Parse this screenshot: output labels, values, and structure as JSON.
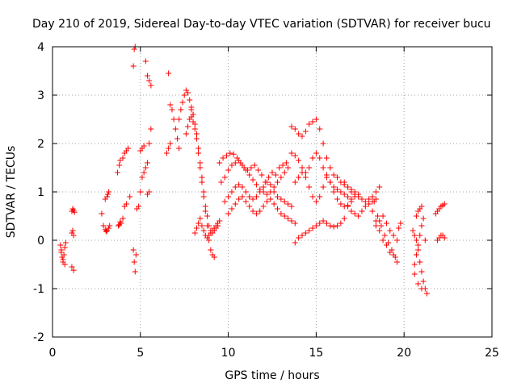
{
  "chart_data": {
    "type": "scatter",
    "title": "Day 210 of 2019, Sidereal Day-to-day VTEC variation (SDTVAR) for receiver bucu",
    "xlabel": "GPS time / hours",
    "ylabel": "SDTVAR / TECUs",
    "xlim": [
      0,
      25
    ],
    "ylim": [
      -2,
      4
    ],
    "x_ticks": [
      "0",
      "5",
      "10",
      "15",
      "20",
      "25"
    ],
    "y_ticks": [
      "-2",
      "-1",
      "0",
      "1",
      "2",
      "3",
      "4"
    ],
    "grid": true,
    "marker": "+",
    "color": "#ff0000",
    "series": [
      {
        "name": "SDTVAR",
        "x": [
          0.45,
          0.5,
          0.55,
          0.6,
          0.65,
          0.7,
          0.75,
          0.5,
          0.6,
          0.7,
          1.1,
          1.15,
          1.2,
          1.25,
          1.1,
          1.15,
          1.2,
          1.1,
          1.2,
          2.8,
          2.9,
          3.0,
          3.05,
          3.1,
          3.15,
          3.2,
          3.0,
          3.1,
          3.2,
          3.25,
          3.7,
          3.8,
          3.85,
          3.9,
          4.0,
          4.1,
          4.2,
          3.75,
          3.8,
          3.85,
          4.0,
          4.1,
          4.2,
          4.3,
          4.4,
          4.6,
          4.65,
          4.7,
          4.6,
          4.65,
          4.7,
          4.75,
          4.8,
          4.9,
          5.0,
          5.0,
          5.1,
          5.2,
          5.3,
          5.4,
          5.5,
          5.6,
          5.1,
          5.2,
          5.3,
          5.4,
          5.5,
          5.6,
          5.4,
          5.5,
          6.6,
          6.7,
          6.8,
          6.9,
          7.0,
          7.1,
          7.2,
          6.5,
          6.6,
          6.7,
          7.2,
          7.3,
          7.4,
          7.5,
          7.6,
          7.7,
          7.8,
          7.9,
          8.0,
          7.6,
          7.7,
          7.8,
          7.9,
          8.0,
          8.1,
          8.2,
          8.3,
          8.4,
          8.5,
          8.6,
          8.7,
          8.8,
          8.9,
          9.0,
          9.1,
          9.2,
          7.9,
          8.0,
          8.1,
          8.2,
          8.3,
          8.4,
          8.5,
          8.6,
          8.7,
          8.8,
          8.9,
          9.0,
          9.1,
          9.2,
          9.3,
          9.4,
          8.1,
          8.2,
          8.3,
          8.4,
          8.5,
          8.6,
          8.7,
          8.8,
          8.9,
          9.0,
          9.1,
          9.2,
          9.3,
          9.4,
          9.5,
          9.5,
          9.7,
          9.9,
          10.1,
          10.3,
          10.5,
          10.7,
          10.9,
          11.1,
          11.3,
          11.5,
          11.7,
          11.9,
          12.1,
          12.3,
          12.5,
          12.7,
          12.9,
          13.1,
          13.3,
          9.6,
          9.8,
          10.0,
          10.2,
          10.4,
          10.6,
          10.8,
          11.0,
          11.2,
          11.4,
          11.6,
          11.8,
          12.0,
          12.2,
          12.4,
          12.6,
          12.8,
          13.0,
          13.2,
          13.4,
          9.8,
          10.0,
          10.2,
          10.4,
          10.6,
          10.8,
          11.0,
          11.2,
          11.4,
          11.6,
          11.8,
          12.0,
          12.2,
          12.4,
          12.6,
          12.8,
          13.0,
          13.2,
          13.4,
          13.6,
          10.0,
          10.2,
          10.4,
          10.6,
          10.8,
          11.0,
          11.2,
          11.4,
          11.6,
          11.8,
          12.0,
          12.2,
          12.4,
          12.6,
          12.8,
          13.0,
          13.2,
          13.4,
          13.6,
          13.8,
          13.6,
          13.8,
          14.0,
          14.2,
          14.4,
          14.6,
          14.8,
          15.0,
          15.2,
          15.4,
          15.6,
          15.8,
          16.0,
          16.2,
          16.4,
          16.6,
          16.8,
          17.0,
          17.2,
          17.4,
          13.6,
          13.8,
          14.0,
          14.2,
          14.4,
          14.6,
          14.8,
          15.0,
          15.2,
          15.4,
          15.6,
          15.8,
          16.0,
          16.2,
          16.4,
          16.6,
          16.8,
          17.0,
          13.8,
          14.0,
          14.2,
          14.4,
          14.6,
          14.8,
          15.0,
          15.2,
          15.4,
          15.6,
          15.8,
          16.0,
          16.2,
          16.4,
          16.6,
          16.8,
          17.0,
          17.2,
          13.8,
          14.0,
          14.2,
          14.4,
          14.6,
          14.8,
          15.0,
          15.2,
          15.4,
          15.6,
          15.8,
          16.0,
          16.2,
          16.4,
          16.6,
          16.6,
          16.8,
          17.0,
          17.2,
          17.4,
          17.6,
          17.8,
          18.0,
          18.2,
          18.4,
          18.6,
          16.8,
          17.0,
          17.2,
          17.4,
          17.6,
          17.8,
          18.0,
          18.2,
          18.4,
          18.2,
          18.4,
          18.6,
          18.8,
          19.0,
          19.2,
          19.4,
          19.6,
          18.3,
          18.5,
          18.7,
          18.9,
          19.1,
          19.3,
          19.5,
          18.4,
          18.6,
          18.8,
          19.0,
          19.2,
          19.4,
          19.6,
          19.7,
          19.8,
          20.5,
          20.6,
          20.7,
          20.8,
          20.9,
          21.0,
          21.1,
          21.2,
          21.3,
          20.6,
          20.7,
          20.8,
          20.9,
          21.0,
          21.1,
          20.7,
          20.8,
          20.9,
          21.0,
          20.6,
          20.8,
          21.0,
          21.2,
          21.8,
          21.9,
          22.0,
          22.1,
          22.2,
          22.3,
          21.9,
          22.0,
          22.1,
          22.2,
          22.3
        ],
        "y": [
          -0.1,
          -0.2,
          -0.35,
          -0.45,
          -0.3,
          -0.15,
          -0.05,
          -0.25,
          -0.4,
          -0.5,
          0.6,
          0.65,
          0.62,
          0.58,
          0.15,
          0.2,
          0.1,
          -0.55,
          -0.62,
          0.55,
          0.3,
          0.22,
          0.18,
          0.9,
          0.95,
          1.0,
          0.85,
          0.2,
          0.25,
          0.3,
          1.4,
          1.55,
          1.65,
          0.35,
          0.45,
          0.7,
          0.75,
          0.3,
          0.32,
          0.38,
          1.7,
          1.8,
          1.85,
          1.9,
          0.9,
          -0.2,
          -0.45,
          -0.65,
          3.6,
          3.95,
          4.0,
          -0.3,
          0.65,
          0.7,
          1.0,
          1.85,
          1.9,
          1.95,
          3.7,
          3.4,
          3.3,
          3.2,
          1.3,
          1.4,
          1.5,
          1.6,
          2.0,
          2.3,
          0.95,
          1.0,
          3.45,
          2.8,
          2.7,
          2.5,
          2.3,
          2.1,
          1.9,
          1.8,
          1.9,
          2.0,
          2.5,
          2.7,
          2.85,
          3.0,
          3.1,
          3.05,
          2.9,
          2.75,
          2.6,
          2.2,
          2.35,
          2.5,
          2.55,
          2.45,
          2.3,
          2.1,
          1.8,
          1.5,
          1.2,
          0.9,
          0.6,
          0.3,
          0.0,
          -0.2,
          -0.3,
          -0.35,
          2.7,
          2.6,
          2.4,
          2.2,
          1.9,
          1.6,
          1.3,
          1.0,
          0.7,
          0.5,
          0.3,
          0.2,
          0.15,
          0.2,
          0.25,
          0.3,
          0.15,
          0.25,
          0.35,
          0.45,
          0.3,
          0.2,
          0.1,
          0.05,
          0.1,
          0.15,
          0.2,
          0.25,
          0.3,
          0.35,
          0.4,
          1.6,
          1.7,
          1.75,
          1.8,
          1.78,
          1.7,
          1.6,
          1.5,
          1.45,
          1.5,
          1.55,
          1.45,
          1.35,
          1.2,
          1.3,
          1.4,
          1.35,
          1.5,
          1.55,
          1.6,
          1.2,
          1.3,
          1.45,
          1.55,
          1.6,
          1.65,
          1.55,
          1.45,
          1.35,
          1.25,
          1.15,
          1.05,
          1.0,
          0.95,
          1.0,
          1.1,
          1.2,
          1.3,
          1.4,
          1.5,
          0.8,
          0.9,
          1.0,
          1.1,
          1.15,
          1.1,
          1.0,
          0.9,
          0.85,
          0.9,
          1.0,
          1.1,
          1.2,
          1.15,
          1.0,
          0.9,
          0.85,
          0.8,
          0.75,
          0.7,
          0.55,
          0.65,
          0.75,
          0.85,
          0.9,
          0.8,
          0.7,
          0.6,
          0.55,
          0.6,
          0.7,
          0.8,
          0.85,
          0.75,
          0.65,
          0.55,
          0.5,
          0.45,
          0.4,
          0.35,
          2.35,
          2.3,
          2.2,
          2.15,
          2.25,
          2.4,
          2.45,
          2.5,
          2.3,
          2.0,
          1.7,
          1.5,
          1.35,
          1.3,
          1.2,
          1.15,
          1.1,
          1.05,
          1.0,
          0.95,
          1.8,
          1.75,
          1.65,
          1.5,
          1.4,
          1.5,
          1.7,
          1.8,
          1.7,
          1.5,
          1.35,
          1.2,
          1.1,
          1.05,
          1.0,
          0.95,
          0.9,
          0.85,
          1.2,
          1.3,
          1.4,
          1.3,
          1.1,
          0.9,
          0.8,
          0.9,
          1.1,
          1.3,
          1.2,
          1.0,
          0.85,
          0.75,
          0.7,
          0.72,
          0.8,
          0.9,
          -0.05,
          0.05,
          0.1,
          0.15,
          0.2,
          0.25,
          0.3,
          0.35,
          0.4,
          0.35,
          0.3,
          0.28,
          0.3,
          0.35,
          0.45,
          1.2,
          1.1,
          1.0,
          0.95,
          0.9,
          0.85,
          0.8,
          0.85,
          0.9,
          1.0,
          1.1,
          0.7,
          0.6,
          0.55,
          0.5,
          0.6,
          0.7,
          0.75,
          0.8,
          0.85,
          0.6,
          0.4,
          0.2,
          0.0,
          -0.1,
          -0.25,
          -0.3,
          -0.45,
          0.8,
          0.5,
          0.3,
          0.1,
          -0.05,
          -0.2,
          -0.35,
          0.3,
          0.4,
          0.5,
          0.35,
          0.2,
          0.1,
          0.0,
          0.25,
          0.35,
          0.2,
          0.1,
          0.0,
          -0.2,
          -0.45,
          -0.65,
          -0.85,
          -1.0,
          -1.1,
          -0.5,
          -0.3,
          -0.1,
          0.1,
          0.3,
          0.45,
          0.5,
          0.6,
          0.65,
          0.7,
          -0.7,
          -0.9,
          -1.0,
          0.0,
          0.55,
          0.6,
          0.65,
          0.7,
          0.72,
          0.75,
          0.0,
          0.05,
          0.1,
          0.1,
          0.05
        ]
      }
    ]
  }
}
